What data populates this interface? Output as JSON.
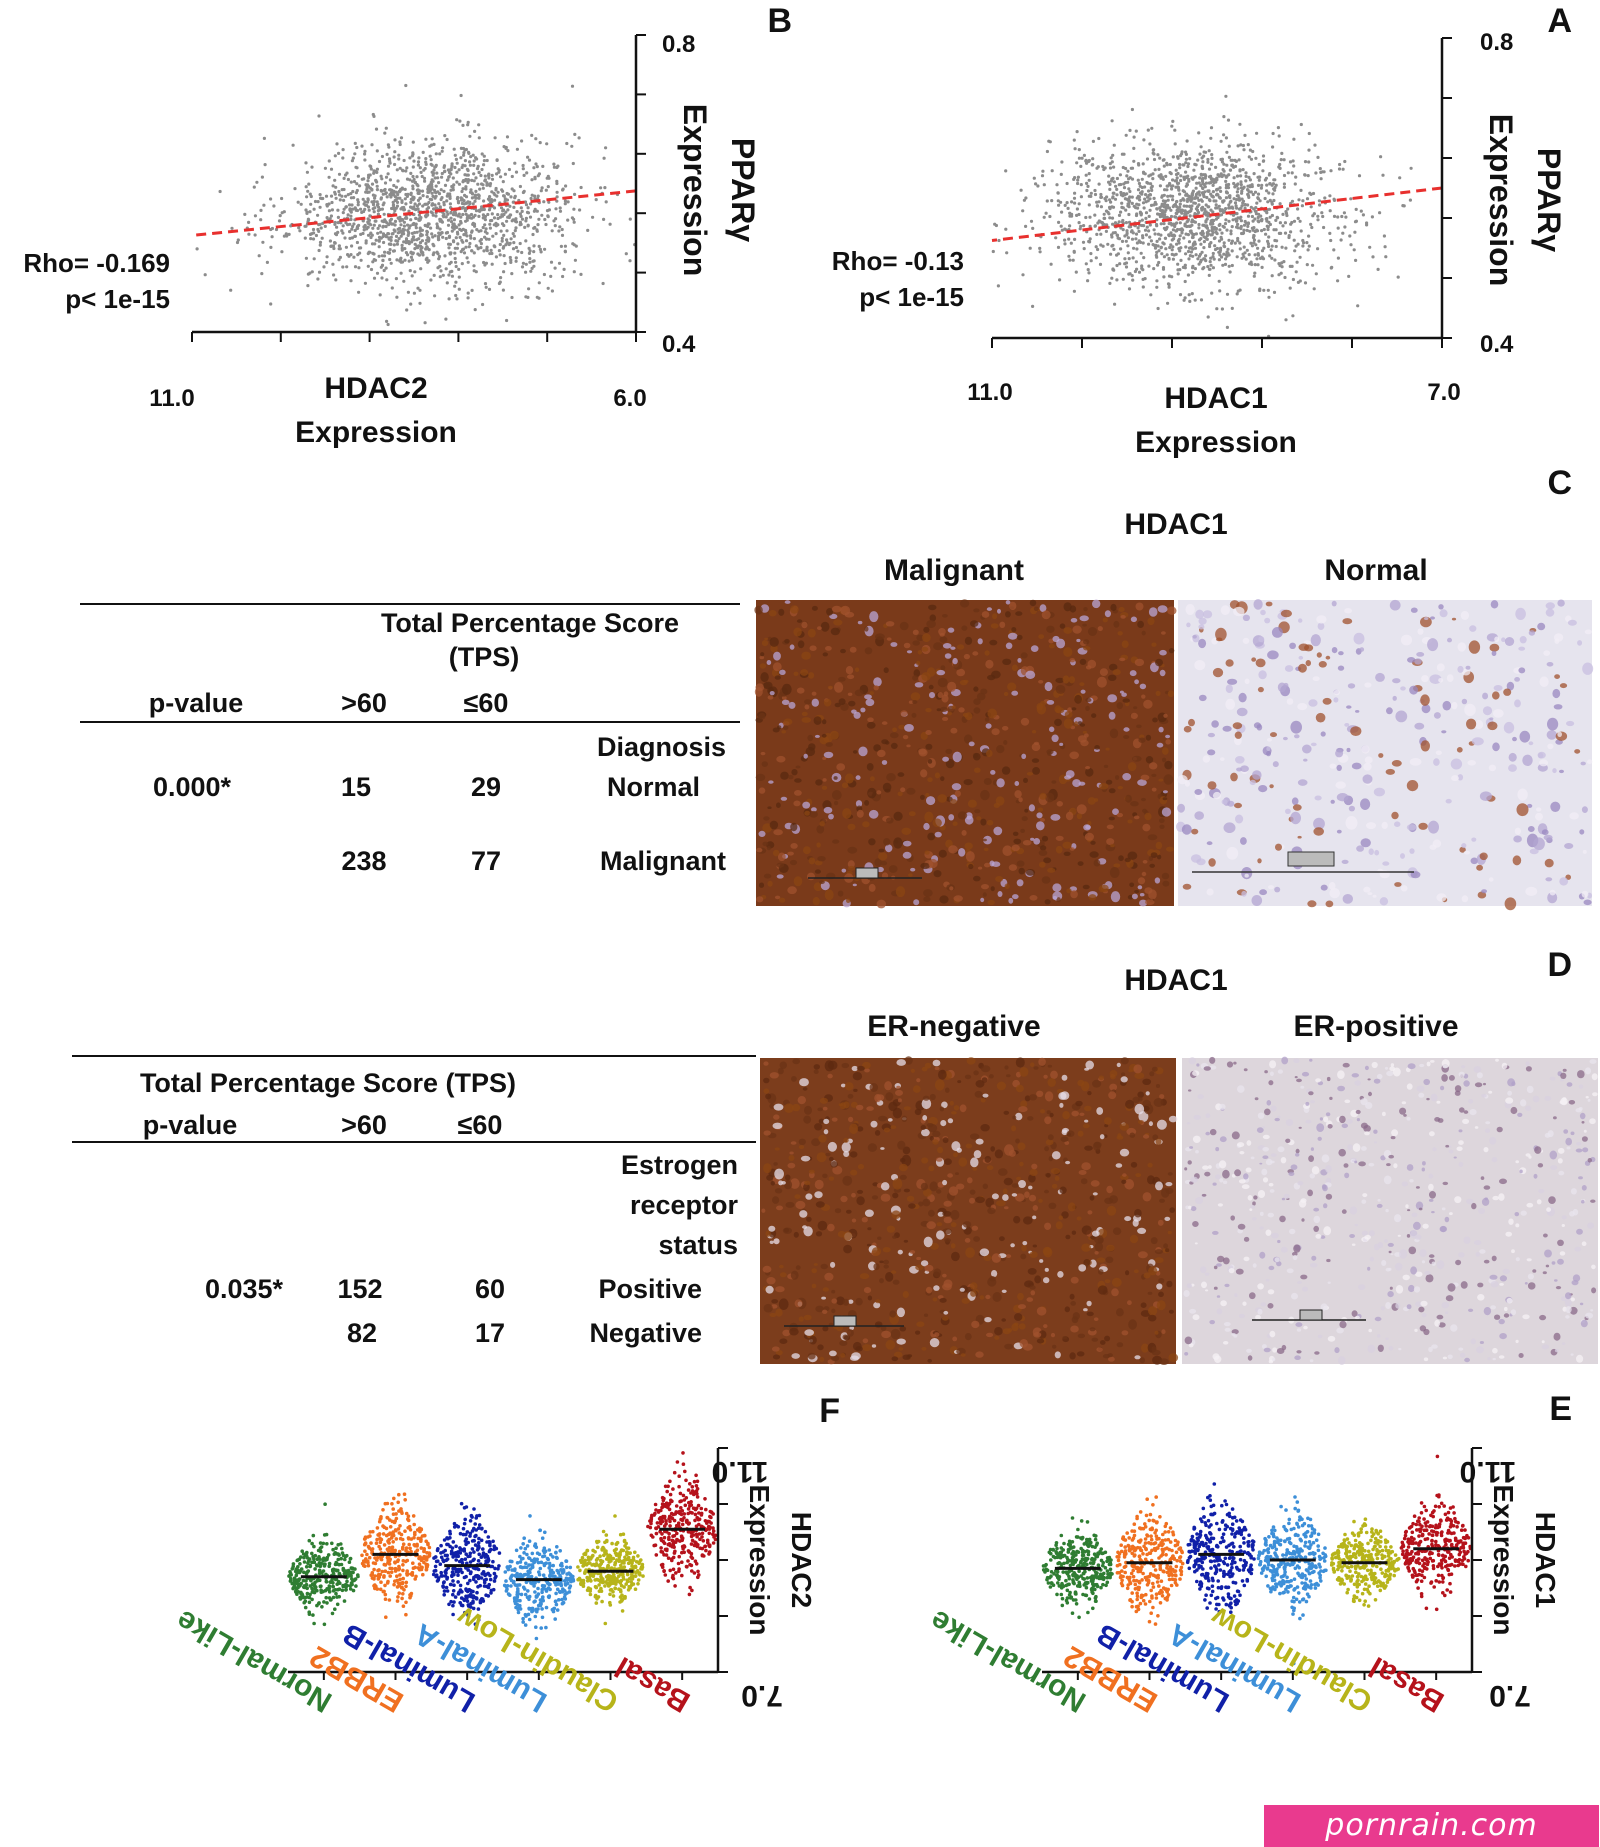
{
  "panels": {
    "A": {
      "letter": "A",
      "chart_data": {
        "type": "scatter",
        "xlabel": "HDAC1 Expression",
        "ylabel": "PPARγ Expression",
        "x_ticks": [
          "7.0",
          "11.0"
        ],
        "y_ticks": [
          "0.4",
          "0.8"
        ],
        "xlim": [
          7.0,
          11.0
        ],
        "ylim": [
          0.4,
          0.8
        ],
        "annotation": [
          "Rho= -0.13",
          "p< 1e-15"
        ],
        "point_color": "#8c8c8c",
        "trend_color": "#e8302e",
        "cluster_center": [
          9.2,
          0.565
        ],
        "trend_line": [
          [
            7.0,
            0.6
          ],
          [
            11.0,
            0.53
          ]
        ],
        "x_display_reversed": true
      }
    },
    "B": {
      "letter": "B",
      "chart_data": {
        "type": "scatter",
        "xlabel": "HDAC2 Expression",
        "ylabel": "PPARγ Expression",
        "x_ticks": [
          "6.0",
          "11.0"
        ],
        "y_ticks": [
          "0.4",
          "0.8"
        ],
        "xlim": [
          6.0,
          11.0
        ],
        "ylim": [
          0.4,
          0.8
        ],
        "annotation": [
          "Rho= -0.169",
          "p< 1e-15"
        ],
        "point_color": "#8c8c8c",
        "trend_color": "#e8302e",
        "cluster_center": [
          8.3,
          0.56
        ],
        "trend_line": [
          [
            6.0,
            0.59
          ],
          [
            11.0,
            0.53
          ]
        ],
        "x_display_reversed": true
      }
    },
    "C": {
      "letter": "C",
      "title": "HDAC1",
      "image_labels": [
        "Normal",
        "Malignant"
      ],
      "table": {
        "header_group": "Total Percentage Score",
        "header_group_2": "(TPS)",
        "col_le60": "≤60",
        "col_gt60": ">60",
        "col_p": "p-value",
        "section": "Diagnosis",
        "rows": [
          {
            "label": "Normal",
            "le60": "29",
            "gt60": "15",
            "p": "0.000*"
          },
          {
            "label": "Malignant",
            "le60": "77",
            "gt60": "238",
            "p": ""
          }
        ]
      }
    },
    "D": {
      "letter": "D",
      "title": "HDAC1",
      "image_labels": [
        "ER-positive",
        "ER-negative"
      ],
      "table": {
        "header_group": "Total Percentage Score (TPS)",
        "col_le60": "≤60",
        "col_gt60": ">60",
        "col_p": "p-value",
        "section": [
          "Estrogen",
          "receptor",
          "status"
        ],
        "rows": [
          {
            "label": "Positive",
            "le60": "60",
            "gt60": "152",
            "p": "0.035*"
          },
          {
            "label": "Negative",
            "le60": "17",
            "gt60": "82",
            "p": ""
          }
        ]
      }
    },
    "E": {
      "letter": "E",
      "chart_data": {
        "type": "scatter",
        "subtype": "dot-strip",
        "ylabel": "HDAC1 Expression",
        "y_ticks": [
          "7.0",
          "11.0"
        ],
        "ylim": [
          7.0,
          11.0
        ],
        "categories": [
          "Basal",
          "Claudin-Low",
          "Luminal-A",
          "Luminal-B",
          "ERBB2",
          "Normal-Like"
        ],
        "colors": [
          "#b5121b",
          "#b7b41a",
          "#3d8fd8",
          "#1020a8",
          "#f07020",
          "#2f7d32"
        ],
        "medians": [
          9.2,
          8.95,
          9.0,
          9.1,
          8.95,
          8.85
        ],
        "spreads": [
          0.7,
          0.55,
          0.7,
          0.8,
          0.75,
          0.6
        ]
      }
    },
    "F": {
      "letter": "F",
      "chart_data": {
        "type": "scatter",
        "subtype": "dot-strip",
        "ylabel": "HDAC2 Expression",
        "y_ticks": [
          "7.0",
          "11.0"
        ],
        "ylim": [
          7.0,
          11.0
        ],
        "categories": [
          "Basal",
          "Claudin-Low",
          "Luminal-A",
          "Luminal-B",
          "ERBB2",
          "Normal-Like"
        ],
        "colors": [
          "#b5121b",
          "#b7b41a",
          "#3d8fd8",
          "#1020a8",
          "#f07020",
          "#2f7d32"
        ],
        "medians": [
          9.55,
          8.8,
          8.65,
          8.9,
          9.1,
          8.7
        ],
        "spreads": [
          0.75,
          0.5,
          0.65,
          0.7,
          0.7,
          0.55
        ]
      }
    }
  },
  "watermark": "pornrain.com"
}
